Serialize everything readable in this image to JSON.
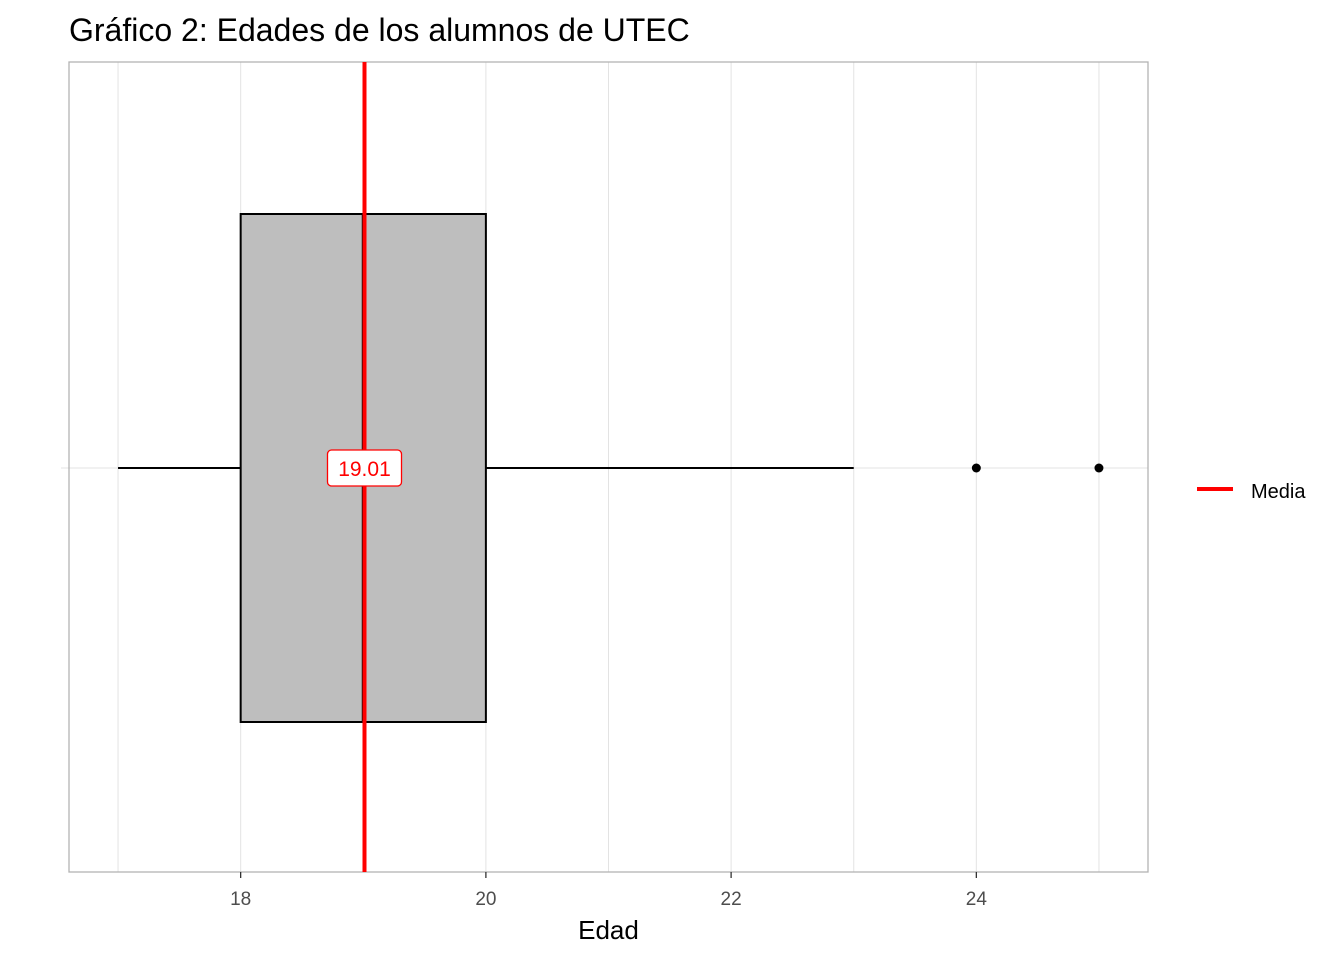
{
  "chart_data": {
    "type": "boxplot",
    "title": "Gráfico 2: Edades de los alumnos de UTEC",
    "xlabel": "Edad",
    "ylabel": "",
    "xlim": [
      16.6,
      25.4
    ],
    "x_ticks": [
      18,
      20,
      22,
      24
    ],
    "x_tick_labels": [
      "18",
      "20",
      "22",
      "24"
    ],
    "grid": true,
    "box": {
      "whisker_low": 17,
      "q1": 18,
      "median": 19,
      "q3": 20,
      "whisker_high": 23,
      "outliers": [
        24,
        25
      ],
      "fill_color": "#bebebe",
      "line_color": "#000000"
    },
    "mean_line": {
      "value": 19.01,
      "label": "19.01",
      "color": "#ff0000"
    },
    "legend": {
      "position": "right",
      "entries": [
        {
          "label": "Media",
          "color": "#ff0000"
        }
      ]
    }
  }
}
